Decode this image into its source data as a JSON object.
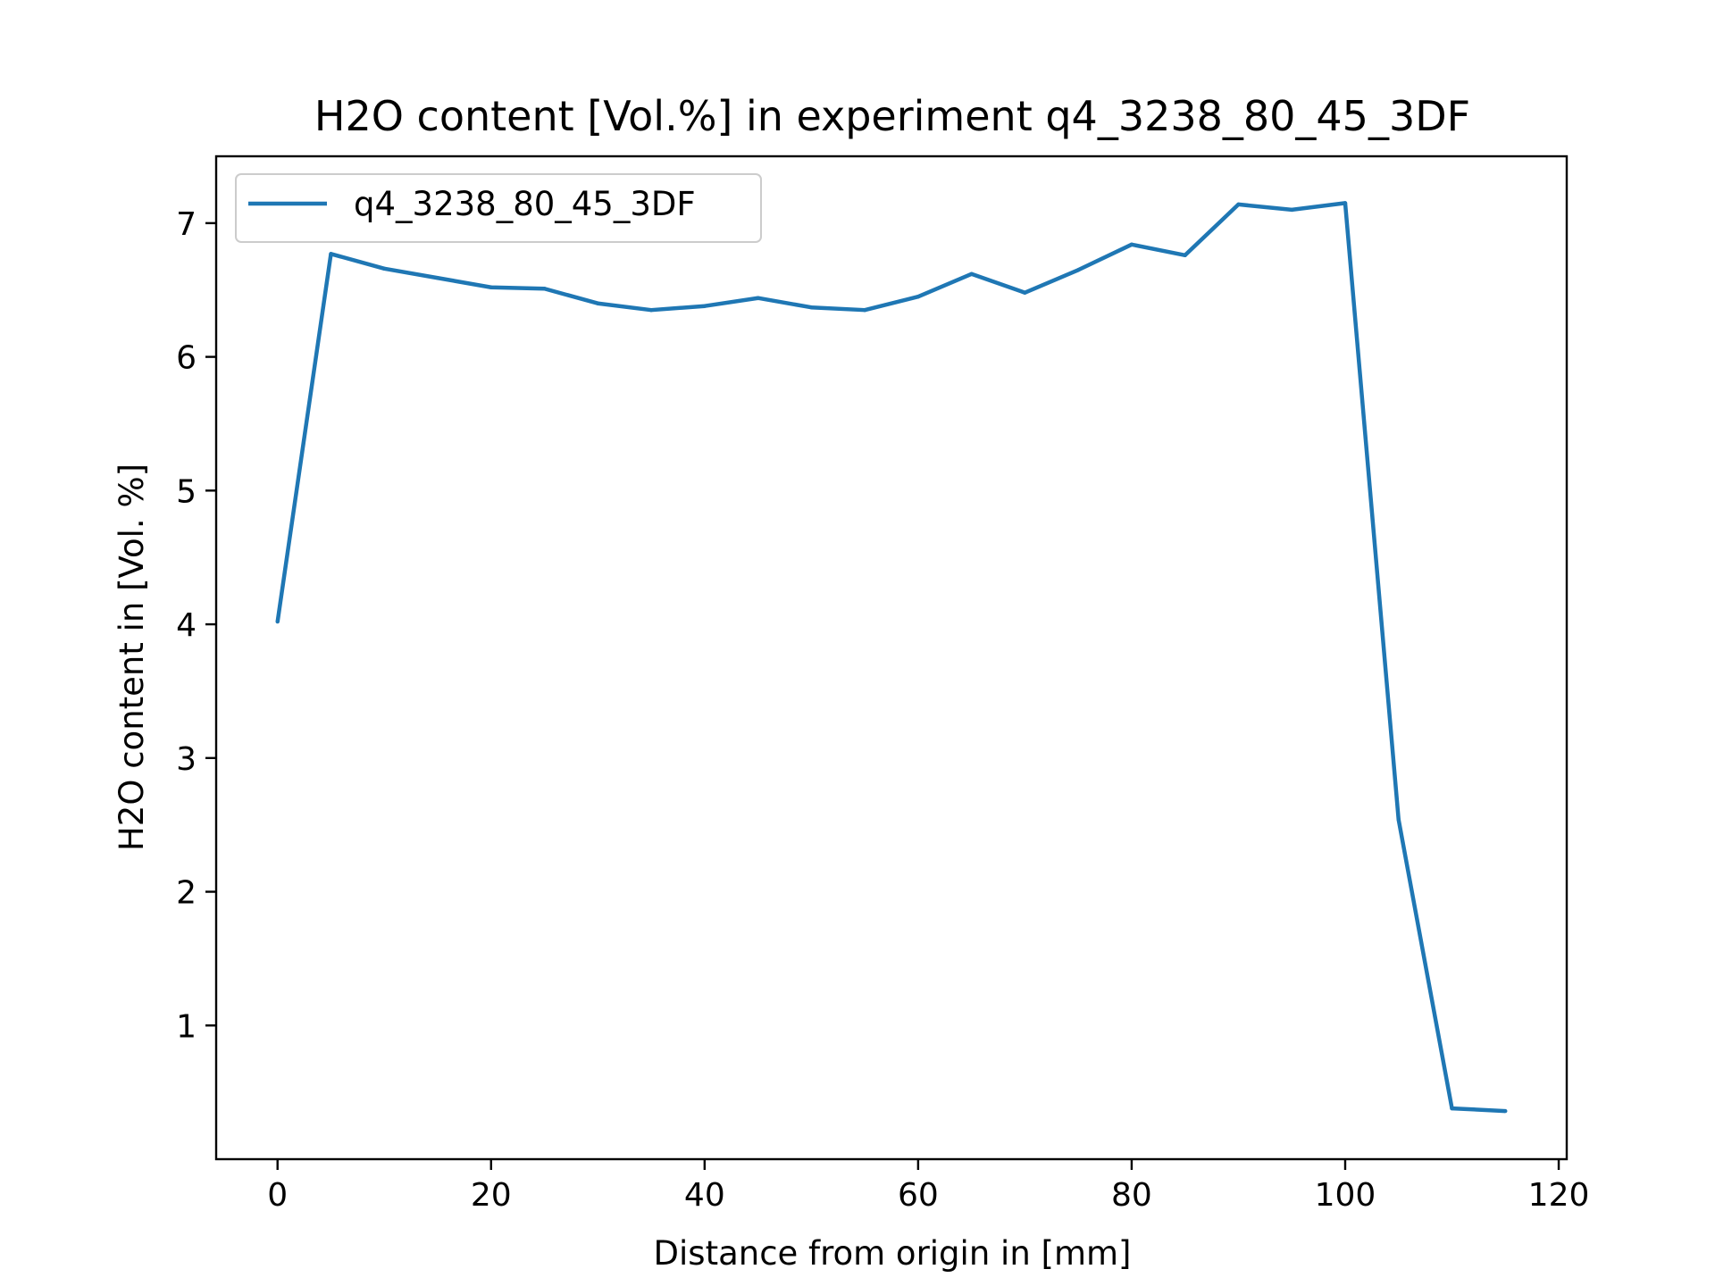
{
  "chart_data": {
    "type": "line",
    "title": "H2O content [Vol.%] in experiment q4_3238_80_45_3DF",
    "xlabel": "Distance from origin in [mm]",
    "ylabel": "H2O content in [Vol. %]",
    "xlim": [
      -5.75,
      120.75
    ],
    "ylim": [
      0.0,
      7.5
    ],
    "xticks": [
      0,
      20,
      40,
      60,
      80,
      100,
      120
    ],
    "yticks": [
      1,
      2,
      3,
      4,
      5,
      6,
      7
    ],
    "grid": false,
    "legend_position": "upper left",
    "series": [
      {
        "name": "q4_3238_80_45_3DF",
        "color": "#1f77b4",
        "x": [
          0,
          5,
          10,
          15,
          20,
          25,
          30,
          35,
          40,
          45,
          50,
          55,
          60,
          65,
          70,
          75,
          80,
          85,
          90,
          95,
          100,
          105,
          110,
          115
        ],
        "y": [
          4.02,
          6.77,
          6.66,
          6.59,
          6.52,
          6.51,
          6.4,
          6.35,
          6.38,
          6.44,
          6.37,
          6.35,
          6.45,
          6.62,
          6.48,
          6.65,
          6.84,
          6.76,
          7.14,
          7.1,
          7.15,
          2.54,
          0.38,
          0.36
        ]
      }
    ]
  }
}
